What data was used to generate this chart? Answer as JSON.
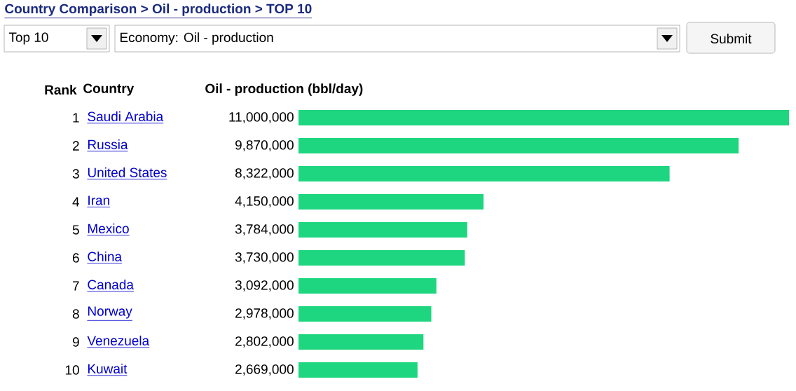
{
  "chart_data": {
    "type": "bar",
    "orientation": "horizontal",
    "title": "Country Comparison > Oil - production > TOP 10",
    "xlabel": "Oil - production (bbl/day)",
    "ylabel": "Country",
    "categories": [
      "Saudi Arabia",
      "Russia",
      "United States",
      "Iran",
      "Mexico",
      "China",
      "Canada",
      "Norway",
      "Venezuela",
      "Kuwait"
    ],
    "values": [
      11000000,
      9870000,
      8322000,
      4150000,
      3784000,
      3730000,
      3092000,
      2978000,
      2802000,
      2669000
    ],
    "value_labels": [
      "11,000,000",
      "9,870,000",
      "8,322,000",
      "4,150,000",
      "3,784,000",
      "3,730,000",
      "3,092,000",
      "2,978,000",
      "2,802,000",
      "2,669,000"
    ],
    "color": "#1ed67f",
    "annotations": [
      "Rank",
      "1",
      "2",
      "3",
      "4",
      "5",
      "6",
      "7",
      "8",
      "9",
      "10",
      "Top 10",
      "Economy: Oil - production",
      "Submit"
    ]
  }
}
